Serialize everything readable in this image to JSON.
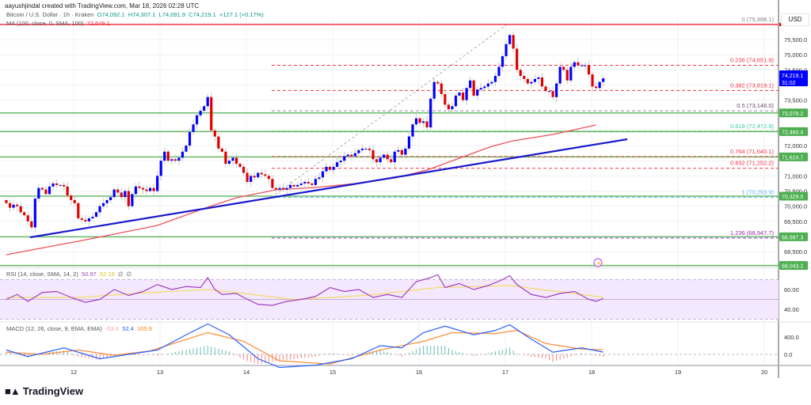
{
  "header": {
    "attribution": "aayushjindal created with TradingView.com, Mar 18, 2026 02:28 UTC"
  },
  "legend": {
    "symbol": "Bitcoin / U.S. Dollar · 1h · Kraken",
    "open": "O74,092.1",
    "high": "H74,307.1",
    "low": "L74,091.9",
    "close": "C74,219.1",
    "change": "+127.1 (+0.17%)",
    "ma_label": "MA (100, close, 0, SMA, 100)",
    "ma_value": "72,649.1",
    "rsi_label": "RSI (14, close, SMA, 14, 2)",
    "rsi_value": "50.97",
    "rsi_sma_value": "52.18",
    "rsi_extra1": "∅",
    "rsi_extra2": "∅",
    "macd_label": "MACD (12, 26, close, 9, EMA, EMA)",
    "macd_hist_value": "-53.5",
    "macd_value": "52.4",
    "macd_signal_value": "105.9"
  },
  "currency": "USD",
  "current_price": {
    "label": "74,219.1",
    "countdown": "31:02",
    "color": "#0000ff"
  },
  "price_axis_labels": [
    "75,500.0",
    "75,000.0",
    "74,500.0",
    "73,500.0",
    "72,000.0",
    "71,000.0",
    "70,500.0",
    "70,000.0",
    "69,500.0",
    "68,500.0"
  ],
  "rsi_axis_labels": [
    "60.00",
    "40.00"
  ],
  "macd_axis_labels": [
    "400.0",
    "0.0"
  ],
  "date_labels": [
    "12",
    "13",
    "14",
    "15",
    "16",
    "17",
    "18",
    "19",
    "20"
  ],
  "logo": "TradingView",
  "colors": {
    "up": "#0000ff",
    "down": "#e00000",
    "ma": "#f0505a",
    "trendline": "#1a1acc",
    "level": "#4caf50",
    "rsi": "#a040c0",
    "rsi_sma": "#f5d84a",
    "macd": "#2962ff",
    "signal": "#ff8c3a",
    "hist_up": "#26a69a",
    "hist_down": "#ef5350"
  },
  "chart_data": {
    "type": "candlestick",
    "timeframe": "1h",
    "ylim": [
      67900,
      76400
    ],
    "closes": [
      70100,
      69950,
      70050,
      70000,
      69800,
      69700,
      69500,
      69300,
      70250,
      70600,
      70550,
      70400,
      70650,
      70750,
      70700,
      70700,
      70650,
      70350,
      70200,
      70100,
      69600,
      69550,
      69500,
      69600,
      69650,
      69800,
      70000,
      70100,
      70200,
      70300,
      70550,
      70450,
      70300,
      70500,
      70000,
      70400,
      70650,
      70600,
      70550,
      70500,
      70600,
      70500,
      71000,
      71500,
      71800,
      71500,
      71550,
      71500,
      71600,
      71800,
      72000,
      72450,
      72700,
      73000,
      73150,
      73300,
      73600,
      72500,
      72300,
      71900,
      71800,
      71400,
      71500,
      71600,
      71400,
      71300,
      71100,
      70800,
      71000,
      70950,
      71100,
      71050,
      71000,
      70900,
      70600,
      70550,
      70600,
      70550,
      70600,
      70700,
      70650,
      70700,
      70750,
      70800,
      70750,
      70700,
      70900,
      70950,
      71150,
      71300,
      71200,
      71300,
      71450,
      71500,
      71650,
      71700,
      71650,
      71750,
      71850,
      71900,
      71900,
      71850,
      71550,
      71450,
      71600,
      71700,
      71550,
      71450,
      71800,
      71850,
      71700,
      71900,
      72300,
      72700,
      72900,
      72750,
      72800,
      72600,
      73550,
      74100,
      74050,
      73700,
      73350,
      73200,
      73300,
      73650,
      73750,
      73500,
      73900,
      74150,
      73650,
      73850,
      73900,
      73950,
      74050,
      74100,
      74300,
      74600,
      74950,
      75350,
      75650,
      75200,
      74500,
      74300,
      74200,
      74050,
      74100,
      74200,
      74250,
      73950,
      73800,
      73800,
      73600,
      74050,
      74600,
      74500,
      74150,
      74600,
      74750,
      74650,
      74650,
      74650,
      74350,
      73950,
      73900,
      74100,
      74219.1
    ],
    "ma100": [
      [
        0,
        68398
      ],
      [
        20,
        68842
      ],
      [
        42,
        69364
      ],
      [
        56,
        69965
      ],
      [
        64,
        70278
      ],
      [
        75,
        70539
      ],
      [
        86,
        70617
      ],
      [
        97,
        70748
      ],
      [
        108,
        70931
      ],
      [
        117,
        71192
      ],
      [
        126,
        71584
      ],
      [
        135,
        71976
      ],
      [
        141,
        72158
      ],
      [
        152,
        72367
      ],
      [
        164,
        72680
      ]
    ],
    "trendline": [
      [
        6.6,
        68973
      ],
      [
        172.7,
        72210
      ]
    ],
    "fib": [
      {
        "ratio": "0",
        "price": 75998.1,
        "label": "0 (75,998.1)",
        "color": "#f23645",
        "text_color": "#888888"
      },
      {
        "ratio": "0.236",
        "price": 74651.9,
        "label": "0.236 (74,651.9)",
        "color": "#f23645",
        "text_color": "#f23645"
      },
      {
        "ratio": "0.382",
        "price": 73819.1,
        "label": "0.382 (73,819.1)",
        "color": "#f23645",
        "text_color": "#f23645"
      },
      {
        "ratio": "0.5",
        "price": 73146.0,
        "label": "0.5 (73,146.0)",
        "color": "#9c8a9c",
        "text_color": "#6a4a6a"
      },
      {
        "ratio": "0.618",
        "price": 72472.9,
        "label": "0.618 (72,472.9)",
        "color": "#4caf50",
        "text_color": "#3cc8a0"
      },
      {
        "ratio": "0.764",
        "price": 71640.1,
        "label": "0.764 (71,640.1)",
        "color": "#f23645",
        "text_color": "#f23645"
      },
      {
        "ratio": "0.832",
        "price": 71252.2,
        "label": "0.832 (71,252.2)",
        "color": "#f23645",
        "text_color": "#f23645"
      },
      {
        "ratio": "1",
        "price": 70293.9,
        "label": "1 (70,293.9)",
        "color": "#64b5f6",
        "text_color": "#64b5f6"
      },
      {
        "ratio": "1.236",
        "price": 68947.7,
        "label": "1.236 (68,947.7)",
        "color": "#b040e0",
        "text_color": "#9c27b0"
      }
    ],
    "levels": [
      {
        "price": 73078.2,
        "label": "73,078.2"
      },
      {
        "price": 72460.4,
        "label": "72,460.4"
      },
      {
        "price": 71624.7,
        "label": "71,624.7"
      },
      {
        "price": 70329.0,
        "label": "70,329.0"
      },
      {
        "price": 68987.3,
        "label": "68,987.3"
      },
      {
        "price": 68043.2,
        "label": "68,043.2"
      }
    ],
    "rsi": [
      [
        0,
        50
      ],
      [
        3,
        55
      ],
      [
        6,
        48
      ],
      [
        10,
        57
      ],
      [
        14,
        58
      ],
      [
        18,
        52
      ],
      [
        22,
        47
      ],
      [
        26,
        50
      ],
      [
        30,
        60
      ],
      [
        34,
        54
      ],
      [
        38,
        58
      ],
      [
        42,
        65
      ],
      [
        46,
        60
      ],
      [
        50,
        63
      ],
      [
        54,
        62
      ],
      [
        56,
        72
      ],
      [
        58,
        60
      ],
      [
        60,
        55
      ],
      [
        64,
        56
      ],
      [
        66,
        52
      ],
      [
        70,
        45
      ],
      [
        74,
        44
      ],
      [
        78,
        48
      ],
      [
        82,
        50
      ],
      [
        86,
        53
      ],
      [
        90,
        62
      ],
      [
        94,
        58
      ],
      [
        98,
        60
      ],
      [
        102,
        52
      ],
      [
        106,
        55
      ],
      [
        110,
        52
      ],
      [
        114,
        68
      ],
      [
        118,
        72
      ],
      [
        120,
        75
      ],
      [
        122,
        62
      ],
      [
        126,
        66
      ],
      [
        130,
        60
      ],
      [
        134,
        64
      ],
      [
        138,
        70
      ],
      [
        140,
        74
      ],
      [
        142,
        65
      ],
      [
        146,
        55
      ],
      [
        150,
        52
      ],
      [
        154,
        56
      ],
      [
        158,
        58
      ],
      [
        162,
        50
      ],
      [
        164,
        48
      ],
      [
        166,
        50.97
      ]
    ],
    "rsi_sma": [
      [
        0,
        52
      ],
      [
        20,
        52
      ],
      [
        40,
        57
      ],
      [
        56,
        60
      ],
      [
        66,
        56
      ],
      [
        80,
        50
      ],
      [
        100,
        54
      ],
      [
        120,
        62
      ],
      [
        140,
        64
      ],
      [
        166,
        52.18
      ]
    ],
    "rsi_bands": [
      70,
      50,
      30
    ],
    "macd": [
      [
        0,
        100
      ],
      [
        6,
        -50
      ],
      [
        16,
        150
      ],
      [
        26,
        -100
      ],
      [
        34,
        0
      ],
      [
        42,
        100
      ],
      [
        50,
        450
      ],
      [
        56,
        700
      ],
      [
        62,
        450
      ],
      [
        70,
        -100
      ],
      [
        76,
        -300
      ],
      [
        86,
        -250
      ],
      [
        96,
        -100
      ],
      [
        104,
        200
      ],
      [
        110,
        150
      ],
      [
        116,
        500
      ],
      [
        122,
        650
      ],
      [
        130,
        450
      ],
      [
        136,
        550
      ],
      [
        140,
        680
      ],
      [
        146,
        350
      ],
      [
        152,
        50
      ],
      [
        156,
        100
      ],
      [
        160,
        150
      ],
      [
        166,
        52.4
      ]
    ],
    "signal": [
      [
        0,
        50
      ],
      [
        10,
        0
      ],
      [
        20,
        100
      ],
      [
        30,
        -20
      ],
      [
        40,
        80
      ],
      [
        56,
        500
      ],
      [
        66,
        300
      ],
      [
        76,
        -150
      ],
      [
        90,
        -220
      ],
      [
        104,
        100
      ],
      [
        116,
        300
      ],
      [
        124,
        500
      ],
      [
        136,
        480
      ],
      [
        142,
        550
      ],
      [
        150,
        250
      ],
      [
        160,
        120
      ],
      [
        166,
        105.9
      ]
    ]
  }
}
